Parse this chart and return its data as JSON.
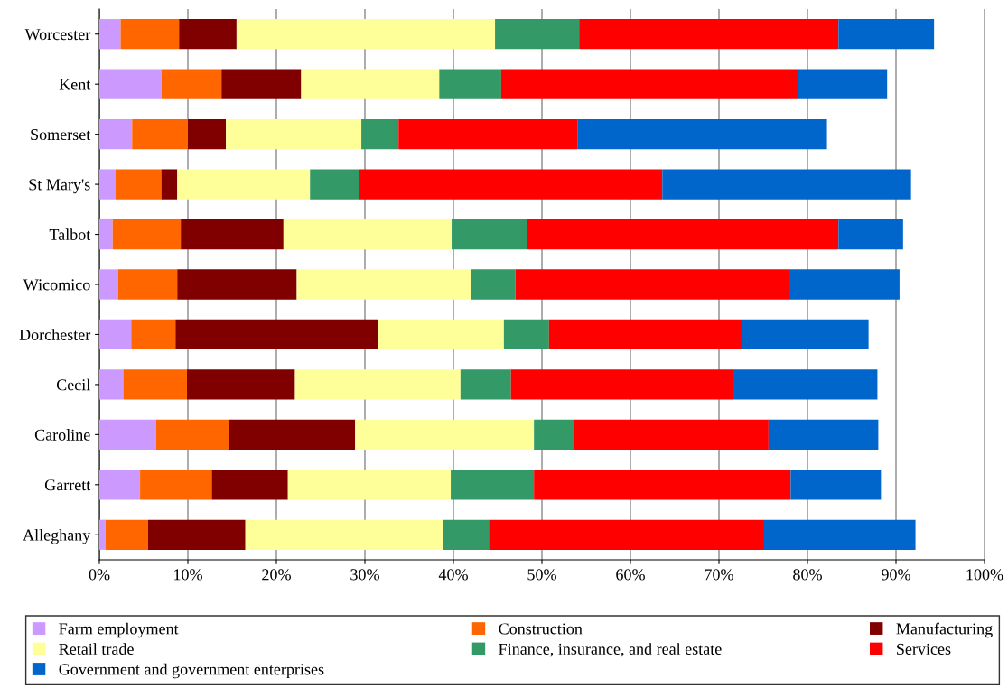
{
  "chart_data": {
    "type": "bar",
    "orientation": "horizontal",
    "stacked": true,
    "categories": [
      "Worcester",
      "Kent",
      "Somerset",
      "St Mary's",
      "Talbot",
      "Wicomico",
      "Dorchester",
      "Cecil",
      "Caroline",
      "Garrett",
      "Alleghany"
    ],
    "series": [
      {
        "name": "Farm employment",
        "color": "#cc99ff",
        "values": [
          2.4,
          7.0,
          3.7,
          1.8,
          1.5,
          2.1,
          3.6,
          2.7,
          6.4,
          4.6,
          0.7
        ]
      },
      {
        "name": "Construction",
        "color": "#ff6600",
        "values": [
          6.6,
          6.8,
          6.3,
          5.2,
          7.7,
          6.7,
          5.0,
          7.2,
          8.2,
          8.1,
          4.8
        ]
      },
      {
        "name": "Manufacturing",
        "color": "#800000",
        "values": [
          6.5,
          9.0,
          4.3,
          1.8,
          11.6,
          13.5,
          22.9,
          12.2,
          14.3,
          8.6,
          11.0
        ]
      },
      {
        "name": "Retail trade",
        "color": "#ffff99",
        "values": [
          29.2,
          15.6,
          15.3,
          15.0,
          19.0,
          19.7,
          14.2,
          18.7,
          20.2,
          18.4,
          22.3
        ]
      },
      {
        "name": "Finance, insurance, and real estate",
        "color": "#339966",
        "values": [
          9.5,
          7.0,
          4.2,
          5.5,
          8.5,
          5.0,
          5.1,
          5.7,
          4.5,
          9.4,
          5.2
        ]
      },
      {
        "name": "Services",
        "color": "#ff0000",
        "values": [
          29.3,
          33.5,
          20.2,
          34.3,
          35.2,
          30.9,
          21.8,
          25.1,
          22.0,
          29.0,
          31.1
        ]
      },
      {
        "name": "Government and government enterprises",
        "color": "#0066cc",
        "values": [
          10.8,
          10.1,
          28.2,
          28.1,
          7.3,
          12.5,
          14.3,
          16.3,
          12.4,
          10.2,
          17.1
        ]
      }
    ],
    "xlim": [
      0,
      100
    ],
    "xticks": [
      {
        "value": 0,
        "label": "0%"
      },
      {
        "value": 10,
        "label": "10%"
      },
      {
        "value": 20,
        "label": "20%"
      },
      {
        "value": 30,
        "label": "30%"
      },
      {
        "value": 40,
        "label": "40%"
      },
      {
        "value": 50,
        "label": "50%"
      },
      {
        "value": 60,
        "label": "60%"
      },
      {
        "value": 70,
        "label": "70%"
      },
      {
        "value": 80,
        "label": "80%"
      },
      {
        "value": 90,
        "label": "90%"
      },
      {
        "value": 100,
        "label": "100%"
      }
    ],
    "grid": "x",
    "legend": "bottom"
  }
}
